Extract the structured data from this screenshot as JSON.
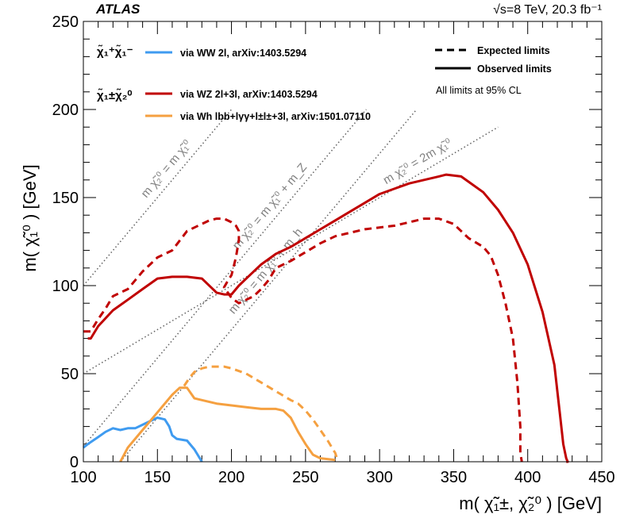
{
  "experiment": "ATLAS",
  "energy_label": "√s=8 TeV, 20.3 fb⁻¹",
  "note": "All limits at 95% CL",
  "line_styles": {
    "expected": "Expected limits",
    "observed": "Observed limits"
  },
  "process_labels": {
    "chargino_pair": "χ̃₁⁺χ̃₁⁻",
    "chargino_neutralino": "χ̃₁±χ̃₂⁰"
  },
  "kinematic_lines": [
    {
      "label": "m χ̃₂⁰ = m χ̃₁⁰",
      "x": [
        100,
        200
      ],
      "y": [
        100,
        200
      ]
    },
    {
      "label": "m χ̃₂⁰ = m χ̃₁⁰ + m_Z",
      "x": [
        100,
        291
      ],
      "y": [
        8.8,
        200
      ]
    },
    {
      "label": "m χ̃₂⁰ = m χ̃₁⁰ + m_h",
      "x": [
        125,
        325
      ],
      "y": [
        0,
        200
      ]
    },
    {
      "label": "m χ̃₂⁰ = 2m χ̃₁⁰",
      "x": [
        100,
        380
      ],
      "y": [
        50,
        190
      ]
    }
  ],
  "colors": {
    "WW": "#3f9bf0",
    "WZ": "#c00000",
    "Wh": "#f5a040",
    "diag": "#606060"
  },
  "chart_data": {
    "type": "line",
    "title": "",
    "xlabel": "m( χ̃₁±, χ̃₂⁰ ) [GeV]",
    "ylabel": "m( χ̃₁⁰ ) [GeV]",
    "xlim": [
      100,
      450
    ],
    "ylim": [
      0,
      250
    ],
    "xticks": [
      100,
      150,
      200,
      250,
      300,
      350,
      400,
      450
    ],
    "yticks": [
      0,
      50,
      100,
      150,
      200,
      250
    ],
    "legend": "top",
    "series": [
      {
        "name": "via WW 2l, arXiv:1403.5294",
        "channel": "WW",
        "style": "observed",
        "x": [
          100,
          103,
          110,
          115,
          120,
          125,
          130,
          135,
          140,
          145,
          150,
          155,
          158,
          160,
          163,
          170,
          175,
          180
        ],
        "y": [
          8,
          10,
          14,
          17,
          19,
          18,
          19,
          19,
          21,
          23,
          25,
          24,
          20,
          15,
          13,
          12,
          7,
          0
        ]
      },
      {
        "name": "via WZ 2l+3l, arXiv:1403.5294",
        "channel": "WZ",
        "style": "observed",
        "x": [
          103,
          105,
          110,
          120,
          130,
          140,
          150,
          160,
          170,
          180,
          190,
          195,
          200,
          205,
          210,
          215,
          220,
          230,
          240,
          250,
          260,
          270,
          280,
          290,
          300,
          310,
          320,
          330,
          340,
          345,
          355,
          360,
          370,
          380,
          390,
          400,
          410,
          418,
          422,
          424,
          426,
          427,
          427,
          426
        ],
        "y": [
          70,
          70,
          77,
          86,
          92,
          98,
          104,
          105,
          105,
          104,
          96,
          95,
          95,
          100,
          104,
          108,
          112,
          118,
          122,
          127,
          132,
          137,
          142,
          147,
          152,
          155,
          158,
          160,
          162,
          163,
          162,
          159,
          153,
          143,
          130,
          112,
          85,
          55,
          25,
          10,
          2,
          0,
          0,
          0
        ]
      },
      {
        "name": "via WZ 2l+3l, arXiv:1403.5294",
        "channel": "WZ",
        "style": "expected",
        "x": [
          100,
          105,
          110,
          115,
          120,
          125,
          130,
          135,
          140,
          145,
          150,
          160,
          170,
          180,
          185,
          190,
          195,
          200,
          203,
          205,
          205,
          203,
          200,
          197,
          195,
          200,
          205,
          210,
          215,
          220,
          225,
          230,
          240,
          250,
          260,
          270,
          280,
          290,
          300,
          310,
          320,
          330,
          335,
          340,
          350,
          355,
          360,
          370,
          375,
          380,
          385,
          390,
          393,
          395,
          395,
          396
        ],
        "y": [
          74,
          74,
          81,
          87,
          94,
          96,
          98,
          103,
          108,
          112,
          116,
          120,
          131,
          135,
          137,
          138,
          138,
          136,
          134,
          131,
          126,
          116,
          106,
          102,
          99,
          93,
          90,
          92,
          94,
          98,
          103,
          110,
          114,
          119,
          124,
          128,
          130,
          132,
          133,
          134,
          136,
          138,
          138,
          138,
          135,
          131,
          127,
          122,
          117,
          106,
          90,
          70,
          45,
          20,
          5,
          0
        ]
      },
      {
        "name": "via Wh lbb+lγγ+l±l±+3l, arXiv:1501.07110",
        "channel": "Wh",
        "style": "observed",
        "x": [
          125,
          130,
          140,
          150,
          160,
          165,
          170,
          175,
          180,
          190,
          200,
          210,
          220,
          230,
          235,
          240,
          245,
          250,
          255,
          260,
          270
        ],
        "y": [
          0,
          8,
          18,
          28,
          38,
          42,
          42,
          36,
          35,
          33,
          32,
          31,
          30,
          30,
          29,
          25,
          17,
          10,
          4,
          2,
          1
        ]
      },
      {
        "name": "via Wh lbb+lγγ+l±l±+3l, arXiv:1501.07110",
        "channel": "Wh",
        "style": "expected",
        "x": [
          168,
          172,
          175,
          180,
          185,
          190,
          195,
          200,
          210,
          220,
          230,
          240,
          245,
          250,
          255,
          260,
          265,
          270,
          272
        ],
        "y": [
          43,
          48,
          51,
          53,
          54,
          54,
          54,
          53,
          50,
          45,
          40,
          35,
          33,
          29,
          24,
          18,
          12,
          5,
          0
        ]
      }
    ]
  }
}
